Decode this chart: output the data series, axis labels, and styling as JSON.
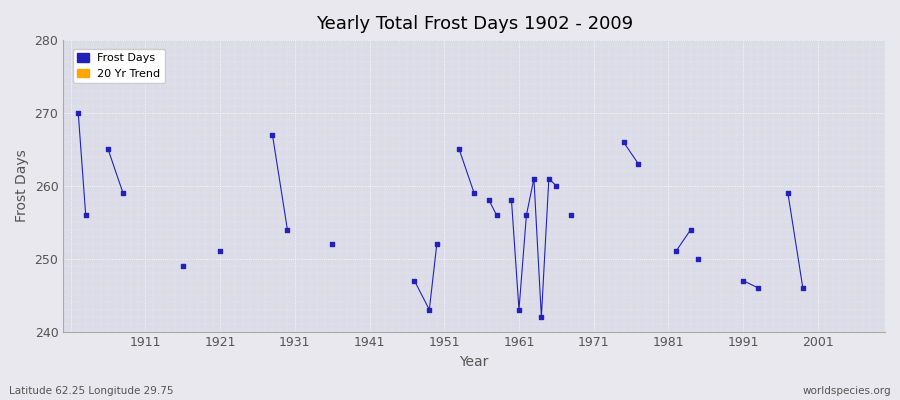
{
  "title": "Yearly Total Frost Days 1902 - 2009",
  "xlabel": "Year",
  "ylabel": "Frost Days",
  "subtitle": "Latitude 62.25 Longitude 29.75",
  "watermark": "worldspecies.org",
  "ylim": [
    240,
    280
  ],
  "xlim": [
    1900,
    2010
  ],
  "yticks": [
    240,
    250,
    260,
    270,
    280
  ],
  "xticks": [
    1901,
    1911,
    1921,
    1931,
    1941,
    1951,
    1961,
    1971,
    1981,
    1991,
    2001
  ],
  "xtick_labels": [
    "",
    "1911",
    "1921",
    "1931",
    "1941",
    "1951",
    "1961",
    "1971",
    "1981",
    "1991",
    "2001"
  ],
  "fig_bg_color": "#e8e8ee",
  "plot_bg_color": "#dcdce8",
  "line_color": "#2222bb",
  "legend_frost_color": "#2222bb",
  "legend_trend_color": "#ffa500",
  "frost_days_data": [
    [
      1902,
      270
    ],
    [
      1903,
      256
    ],
    [
      1906,
      265
    ],
    [
      1908,
      259
    ],
    [
      1916,
      249
    ],
    [
      1921,
      251
    ],
    [
      1928,
      267
    ],
    [
      1930,
      254
    ],
    [
      1936,
      252
    ],
    [
      1947,
      247
    ],
    [
      1949,
      243
    ],
    [
      1950,
      252
    ],
    [
      1953,
      265
    ],
    [
      1955,
      259
    ],
    [
      1957,
      258
    ],
    [
      1958,
      256
    ],
    [
      1960,
      258
    ],
    [
      1961,
      243
    ],
    [
      1962,
      256
    ],
    [
      1963,
      261
    ],
    [
      1964,
      242
    ],
    [
      1965,
      261
    ],
    [
      1966,
      260
    ],
    [
      1968,
      256
    ],
    [
      1975,
      266
    ],
    [
      1977,
      263
    ],
    [
      1982,
      251
    ],
    [
      1984,
      254
    ],
    [
      1985,
      250
    ],
    [
      1991,
      247
    ],
    [
      1993,
      246
    ],
    [
      1997,
      259
    ],
    [
      1999,
      246
    ]
  ],
  "connected_segments": [
    [
      [
        1902,
        270
      ],
      [
        1903,
        256
      ]
    ],
    [
      [
        1906,
        265
      ],
      [
        1908,
        259
      ]
    ],
    [
      [
        1928,
        267
      ],
      [
        1930,
        254
      ]
    ],
    [
      [
        1947,
        247
      ],
      [
        1949,
        243
      ],
      [
        1950,
        252
      ]
    ],
    [
      [
        1953,
        265
      ],
      [
        1955,
        259
      ]
    ],
    [
      [
        1957,
        258
      ],
      [
        1958,
        256
      ]
    ],
    [
      [
        1960,
        258
      ],
      [
        1961,
        243
      ],
      [
        1962,
        256
      ],
      [
        1963,
        261
      ],
      [
        1964,
        242
      ],
      [
        1965,
        261
      ],
      [
        1966,
        260
      ]
    ],
    [
      [
        1975,
        266
      ],
      [
        1977,
        263
      ]
    ],
    [
      [
        1982,
        251
      ],
      [
        1984,
        254
      ]
    ],
    [
      [
        1991,
        247
      ],
      [
        1993,
        246
      ]
    ],
    [
      [
        1997,
        259
      ],
      [
        1999,
        246
      ]
    ]
  ]
}
